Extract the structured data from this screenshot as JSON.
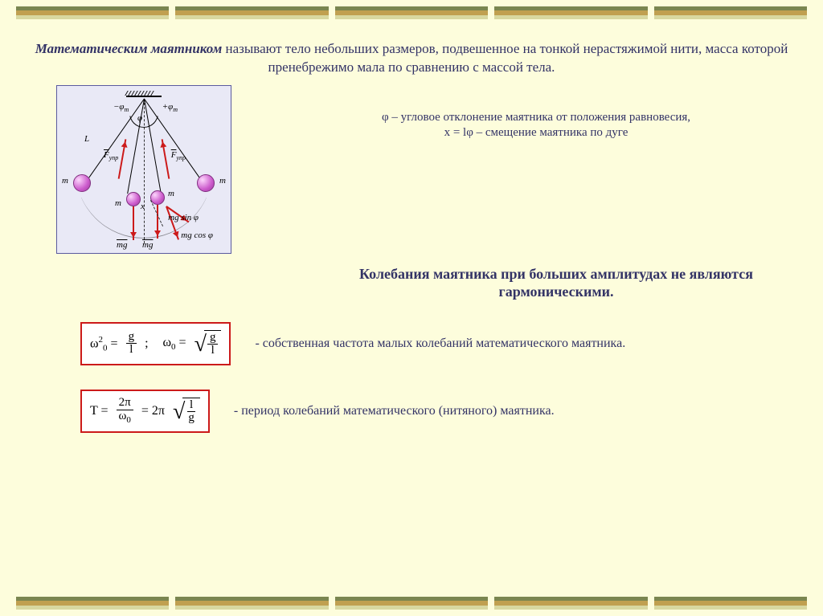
{
  "intro": {
    "lead": "Математическим маятником",
    "rest": " называют тело небольших размеров, подвешенное на тонкой нерастяжимой нити, масса которой пренебрежимо мала по сравнению с массой тела."
  },
  "notes": {
    "phi": "φ – угловое отклонение маятника от положения равновесия,",
    "x": "x = lφ – смещение маятника по дуге"
  },
  "emphasis": "Колебания маятника при больших амплитудах не являются гармоническими.",
  "formula1": {
    "desc": "- собственная  частота малых колебаний математического маятника."
  },
  "formula2": {
    "desc": "- период колебаний математического (нитяного) маятника."
  },
  "diagram": {
    "labels": {
      "minus_phi_m": "−φ",
      "plus_phi_m": "+φ",
      "sub_m": "m",
      "phi": "φ",
      "L": "L",
      "F_upr": "F",
      "upr_sub": "упр",
      "m": "m",
      "x": "x",
      "mg": "mg",
      "mg_sin": "mg sin φ",
      "mg_cos": "mg cos φ"
    },
    "colors": {
      "force": "#cc1a1a",
      "ball_light": "#fcd6fc",
      "ball_dark": "#cc5acc",
      "bg": "#e9e9f6",
      "border": "#5b5ba0",
      "page_bg": "#fdfddc",
      "text": "#333366"
    }
  },
  "math": {
    "omega": "ω",
    "zero": "0",
    "two": "2",
    "g": "g",
    "l": "l",
    "eq": "=",
    "semicolon": ";",
    "T": "T",
    "twopi": "2π"
  }
}
